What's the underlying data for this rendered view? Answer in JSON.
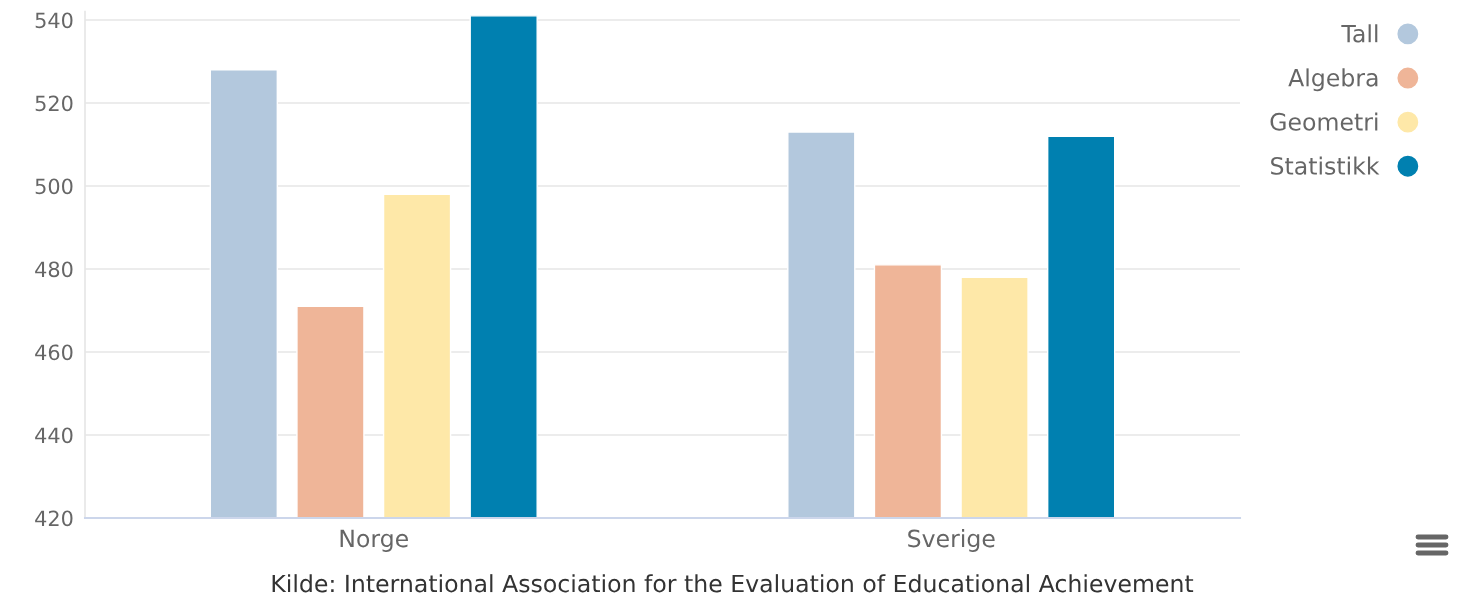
{
  "chart_data": {
    "type": "bar",
    "categories": [
      "Norge",
      "Sverige"
    ],
    "series": [
      {
        "name": "Tall",
        "color": "#b3c8dd",
        "values": [
          528,
          513
        ]
      },
      {
        "name": "Algebra",
        "color": "#efb598",
        "values": [
          471,
          481
        ]
      },
      {
        "name": "Geometri",
        "color": "#fee8a8",
        "values": [
          498,
          478
        ]
      },
      {
        "name": "Statistikk",
        "color": "#0080b0",
        "values": [
          541,
          512
        ]
      }
    ],
    "ylim": [
      420,
      542
    ],
    "yticks": [
      420,
      440,
      460,
      480,
      500,
      520,
      540
    ],
    "grid": "y",
    "legend": "top right",
    "annotations": [
      "Kilde: International Association for the Evaluation of Educational Achievement"
    ]
  }
}
